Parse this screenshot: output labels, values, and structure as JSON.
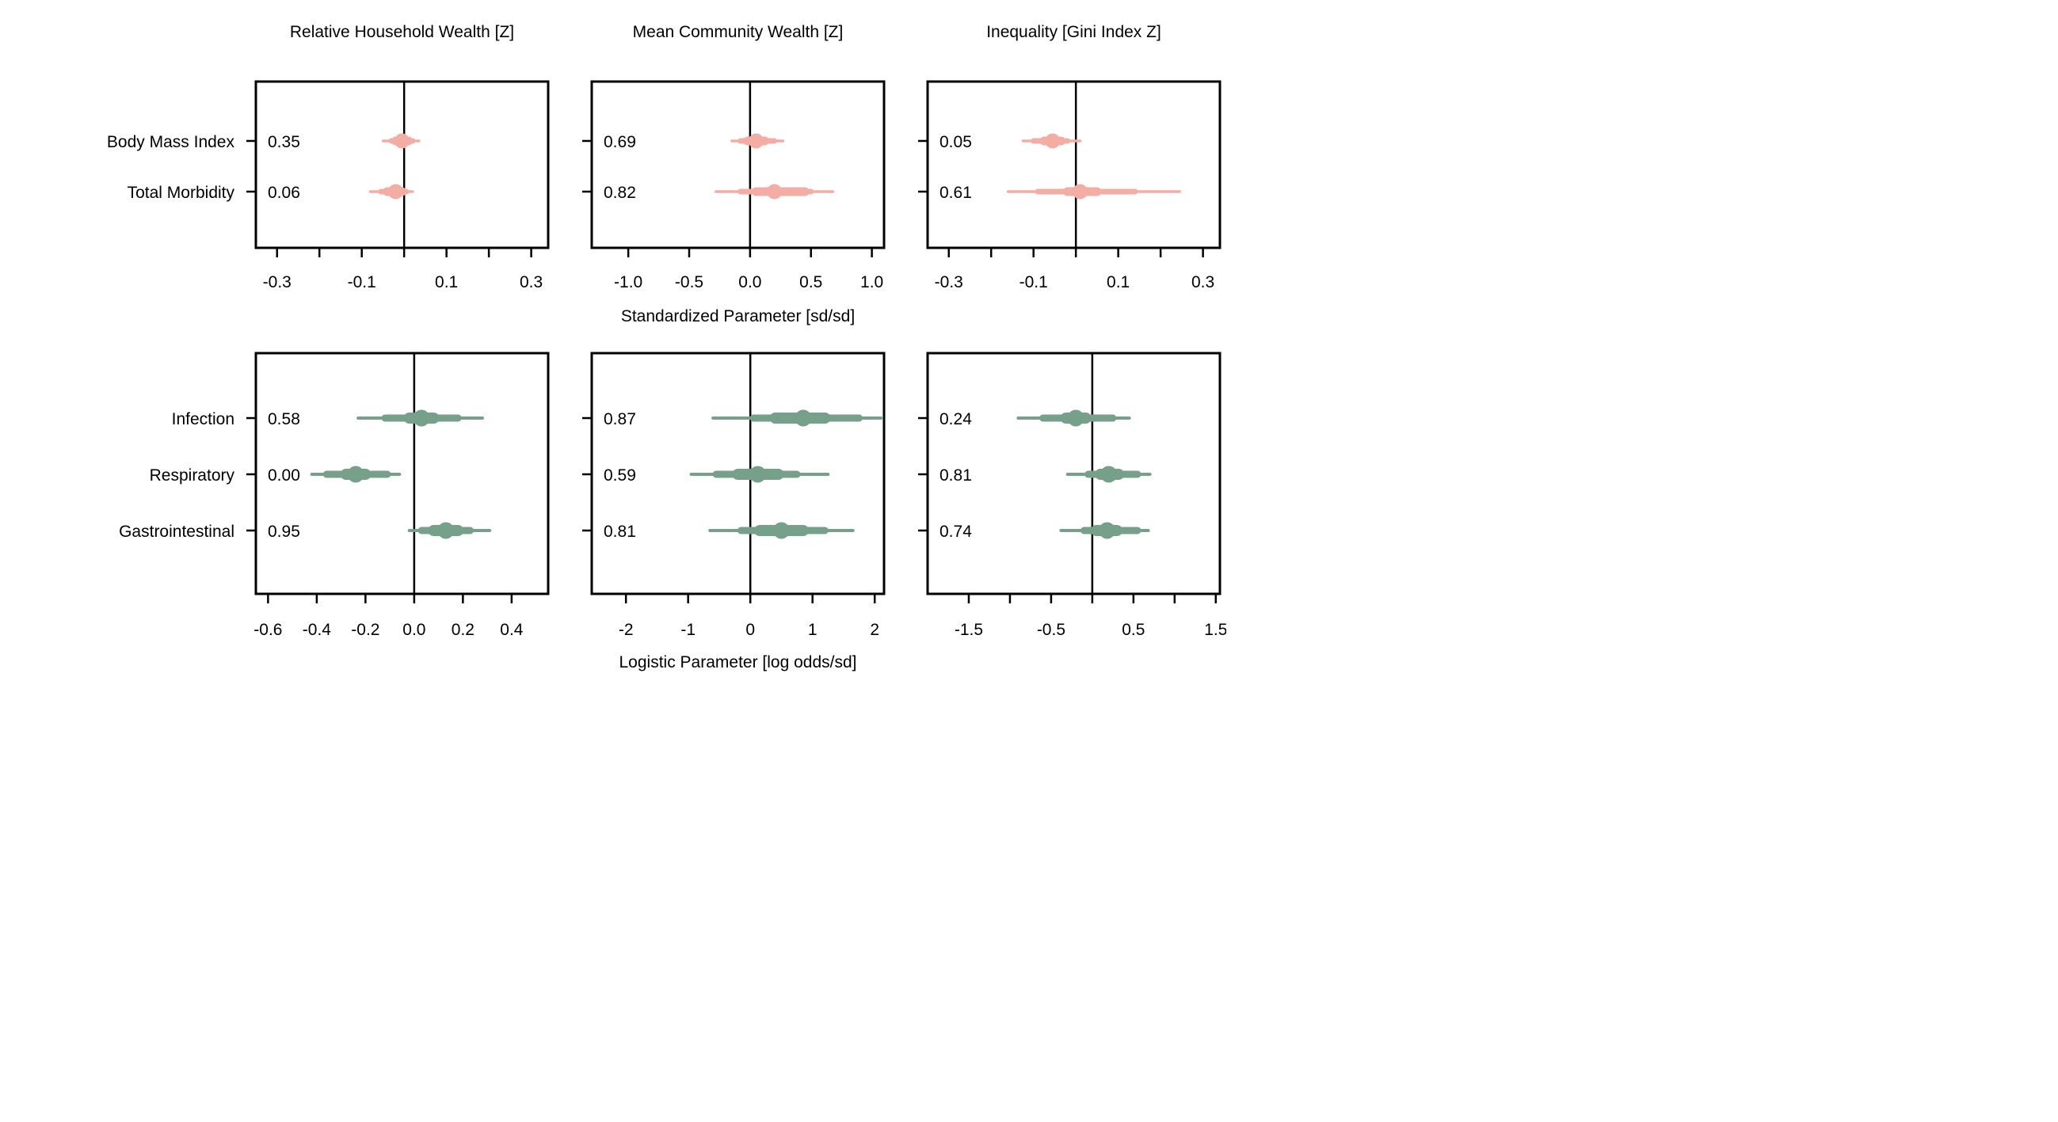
{
  "chart_data": {
    "type": "forest",
    "columns": [
      "Relative Household Wealth [Z]",
      "Mean Community Wealth [Z]",
      "Inequality [Gini Index Z]"
    ],
    "rows": [
      {
        "axis_label": "Standardized Parameter [sd/sd]",
        "color": "#f4ada4",
        "outcomes": [
          "Body Mass Index",
          "Total Morbidity"
        ],
        "panels": [
          {
            "xlim": [
              -0.35,
              0.34
            ],
            "ticks": [
              -0.3,
              -0.2,
              -0.1,
              0.0,
              0.1,
              0.2,
              0.3
            ],
            "tick_labels": [
              "-0.3",
              "",
              "-0.1",
              "",
              "0.1",
              "",
              "0.3"
            ],
            "estimates": [
              {
                "prob": "0.35",
                "median": -0.005,
                "inner": [
                  -0.02,
                  0.01
                ],
                "mid": [
                  -0.03,
                  0.02
                ],
                "outer": [
                  -0.05,
                  0.035
                ]
              },
              {
                "prob": "0.06",
                "median": -0.02,
                "inner": [
                  -0.04,
                  -0.005
                ],
                "mid": [
                  -0.055,
                  0.005
                ],
                "outer": [
                  -0.08,
                  0.02
                ]
              }
            ]
          },
          {
            "xlim": [
              -1.3,
              1.1
            ],
            "ticks": [
              -1.0,
              -0.5,
              0.0,
              0.5,
              1.0
            ],
            "tick_labels": [
              "-1.0",
              "-0.5",
              "0.0",
              "0.5",
              "1.0"
            ],
            "estimates": [
              {
                "prob": "0.69",
                "median": 0.05,
                "inner": [
                  -0.02,
                  0.12
                ],
                "mid": [
                  -0.08,
                  0.2
                ],
                "outer": [
                  -0.15,
                  0.27
                ]
              },
              {
                "prob": "0.82",
                "median": 0.2,
                "inner": [
                  0.05,
                  0.45
                ],
                "mid": [
                  -0.08,
                  0.5
                ],
                "outer": [
                  -0.28,
                  0.68
                ]
              }
            ]
          },
          {
            "xlim": [
              -0.35,
              0.34
            ],
            "ticks": [
              -0.3,
              -0.2,
              -0.1,
              0.0,
              0.1,
              0.2,
              0.3
            ],
            "tick_labels": [
              "-0.3",
              "",
              "-0.1",
              "",
              "0.1",
              "",
              "0.3"
            ],
            "estimates": [
              {
                "prob": "0.05",
                "median": -0.055,
                "inner": [
                  -0.075,
                  -0.035
                ],
                "mid": [
                  -0.1,
                  -0.02
                ],
                "outer": [
                  -0.125,
                  0.01
                ]
              },
              {
                "prob": "0.61",
                "median": 0.01,
                "inner": [
                  -0.02,
                  0.05
                ],
                "mid": [
                  -0.09,
                  0.14
                ],
                "outer": [
                  -0.16,
                  0.245
                ]
              }
            ]
          }
        ]
      },
      {
        "axis_label": "Logistic Parameter [log odds/sd]",
        "color": "#76a08a",
        "outcomes": [
          "Infection",
          "Respiratory",
          "Gastrointestinal"
        ],
        "panels": [
          {
            "xlim": [
              -0.65,
              0.55
            ],
            "ticks": [
              -0.6,
              -0.4,
              -0.2,
              0.0,
              0.2,
              0.4
            ],
            "tick_labels": [
              "-0.6",
              "-0.4",
              "-0.2",
              "0.0",
              "0.2",
              "0.4"
            ],
            "estimates": [
              {
                "prob": "0.58",
                "median": 0.03,
                "inner": [
                  -0.02,
                  0.08
                ],
                "mid": [
                  -0.12,
                  0.18
                ],
                "outer": [
                  -0.23,
                  0.28
                ]
              },
              {
                "prob": "0.00",
                "median": -0.24,
                "inner": [
                  -0.28,
                  -0.2
                ],
                "mid": [
                  -0.36,
                  -0.11
                ],
                "outer": [
                  -0.42,
                  -0.06
                ]
              },
              {
                "prob": "0.95",
                "median": 0.13,
                "inner": [
                  0.08,
                  0.18
                ],
                "mid": [
                  0.03,
                  0.23
                ],
                "outer": [
                  -0.02,
                  0.31
                ]
              }
            ]
          },
          {
            "xlim": [
              -2.55,
              2.15
            ],
            "ticks": [
              -2,
              -1,
              0,
              1,
              2
            ],
            "tick_labels": [
              "-2",
              "-1",
              "0",
              "1",
              "2"
            ],
            "estimates": [
              {
                "prob": "0.87",
                "median": 0.85,
                "inner": [
                  0.4,
                  1.2
                ],
                "mid": [
                  0.05,
                  1.75
                ],
                "outer": [
                  -0.6,
                  2.1
                ]
              },
              {
                "prob": "0.59",
                "median": 0.12,
                "inner": [
                  -0.2,
                  0.45
                ],
                "mid": [
                  -0.55,
                  0.75
                ],
                "outer": [
                  -0.95,
                  1.25
                ]
              },
              {
                "prob": "0.81",
                "median": 0.5,
                "inner": [
                  0.15,
                  0.85
                ],
                "mid": [
                  -0.15,
                  1.2
                ],
                "outer": [
                  -0.65,
                  1.65
                ]
              }
            ]
          },
          {
            "xlim": [
              -2.0,
              1.55
            ],
            "ticks": [
              -1.5,
              -1.0,
              -0.5,
              0.0,
              0.5,
              1.0,
              1.5
            ],
            "tick_labels": [
              "-1.5",
              "",
              "-0.5",
              "",
              "0.5",
              "",
              "1.5"
            ],
            "estimates": [
              {
                "prob": "0.24",
                "median": -0.2,
                "inner": [
                  -0.32,
                  -0.08
                ],
                "mid": [
                  -0.6,
                  0.25
                ],
                "outer": [
                  -0.9,
                  0.45
                ]
              },
              {
                "prob": "0.81",
                "median": 0.2,
                "inner": [
                  0.1,
                  0.32
                ],
                "mid": [
                  -0.05,
                  0.55
                ],
                "outer": [
                  -0.3,
                  0.7
                ]
              },
              {
                "prob": "0.74",
                "median": 0.18,
                "inner": [
                  0.05,
                  0.3
                ],
                "mid": [
                  -0.1,
                  0.55
                ],
                "outer": [
                  -0.38,
                  0.68
                ]
              }
            ]
          }
        ]
      }
    ]
  }
}
